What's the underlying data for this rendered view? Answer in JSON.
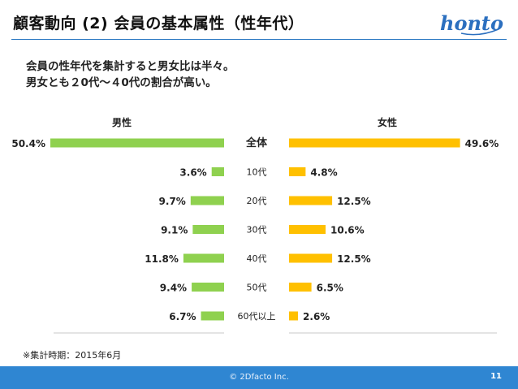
{
  "header": {
    "title": "顧客動向 (2) 会員の基本属性（性年代）",
    "logo_text": "honto"
  },
  "description": {
    "lines": [
      "会員の性年代を集計すると男女比は半々。",
      "男女とも２0代～４0代の割合が高い。"
    ]
  },
  "chart_data": {
    "type": "bar",
    "orientation": "horizontal-butterfly",
    "categories": [
      "全体",
      "10代",
      "20代",
      "30代",
      "40代",
      "50代",
      "60代以上"
    ],
    "series": [
      {
        "name": "男性",
        "values": [
          50.4,
          3.6,
          9.7,
          9.1,
          11.8,
          9.4,
          6.7
        ],
        "labels": [
          "50.4%",
          "3.6%",
          "9.7%",
          "9.1%",
          "11.8%",
          "9.4%",
          "6.7%"
        ],
        "color": "#8fd14f"
      },
      {
        "name": "女性",
        "values": [
          49.6,
          4.8,
          12.5,
          10.6,
          12.5,
          6.5,
          2.6
        ],
        "labels": [
          "49.6%",
          "4.8%",
          "12.5%",
          "10.6%",
          "12.5%",
          "6.5%",
          "2.6%"
        ],
        "color": "#ffc000"
      }
    ],
    "xlim": [
      0,
      50.4
    ],
    "legend": "top"
  },
  "note": "※集計時期：2015年6月",
  "footer": {
    "copyright": "© 2Dfacto Inc.",
    "page_number": "11"
  },
  "colors": {
    "accent": "#2f86d2",
    "logo": "#2b6fbf"
  }
}
